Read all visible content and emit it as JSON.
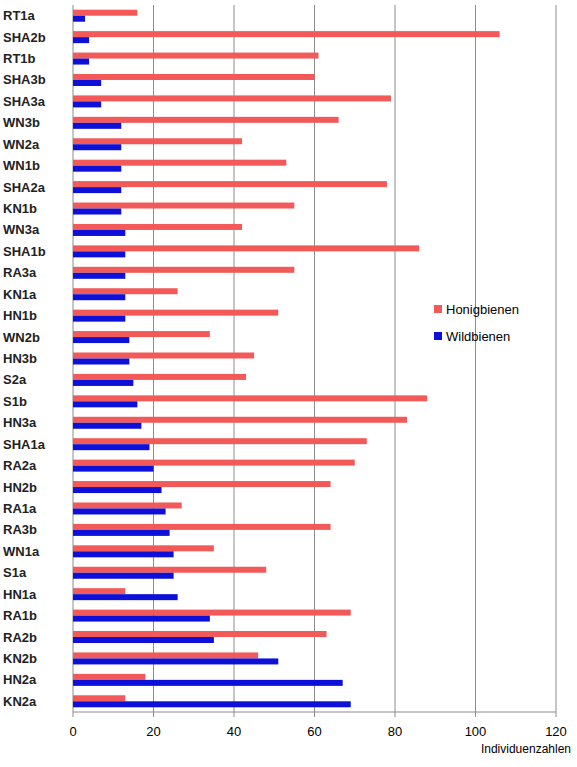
{
  "chart_data": {
    "type": "bar",
    "orientation": "horizontal",
    "categories": [
      "RT1a",
      "SHA2b",
      "RT1b",
      "SHA3b",
      "SHA3a",
      "WN3b",
      "WN2a",
      "WN1b",
      "SHA2a",
      "KN1b",
      "WN3a",
      "SHA1b",
      "RA3a",
      "KN1a",
      "HN1b",
      "WN2b",
      "HN3b",
      "S2a",
      "S1b",
      "HN3a",
      "SHA1a",
      "RA2a",
      "HN2b",
      "RA1a",
      "RA3b",
      "WN1a",
      "S1a",
      "HN1a",
      "RA1b",
      "RA2b",
      "KN2b",
      "HN2a",
      "KN2a"
    ],
    "series": [
      {
        "name": "Honigbienen",
        "color": "#f25a5a",
        "values": [
          16,
          106,
          61,
          60,
          79,
          66,
          42,
          53,
          78,
          55,
          42,
          86,
          55,
          26,
          51,
          34,
          45,
          43,
          88,
          83,
          73,
          70,
          64,
          27,
          64,
          35,
          48,
          13,
          69,
          63,
          46,
          18,
          13
        ]
      },
      {
        "name": "Wildbienen",
        "color": "#0c10d8",
        "values": [
          3,
          4,
          4,
          7,
          7,
          12,
          12,
          12,
          12,
          12,
          13,
          13,
          13,
          13,
          13,
          14,
          14,
          15,
          16,
          17,
          19,
          20,
          22,
          23,
          24,
          25,
          25,
          26,
          34,
          35,
          51,
          67,
          69
        ]
      }
    ],
    "xlabel": "Individuenzahlen",
    "xlim": [
      0,
      120
    ],
    "xticks": [
      0,
      20,
      40,
      60,
      80,
      100,
      120
    ],
    "grid": true,
    "legend": "right"
  }
}
